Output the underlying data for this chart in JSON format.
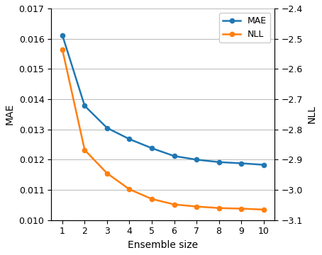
{
  "x": [
    1,
    2,
    3,
    4,
    5,
    6,
    7,
    8,
    9,
    10
  ],
  "mae": [
    0.01612,
    0.01378,
    0.01305,
    0.01268,
    0.01238,
    0.01212,
    0.012,
    0.01192,
    0.01188,
    0.01183
  ],
  "nll": [
    -2.535,
    -2.868,
    -2.945,
    -2.998,
    -3.03,
    -3.048,
    -3.055,
    -3.06,
    -3.062,
    -3.065
  ],
  "mae_color": "#1f77b4",
  "nll_color": "#ff7f0e",
  "xlabel": "Ensemble size",
  "ylabel_left": "MAE",
  "ylabel_right": "NLL",
  "xlim": [
    0.5,
    10.5
  ],
  "ylim_left": [
    0.01,
    0.017
  ],
  "ylim_right": [
    -3.1,
    -2.4
  ],
  "yticks_left": [
    0.01,
    0.011,
    0.012,
    0.013,
    0.014,
    0.015,
    0.016,
    0.017
  ],
  "yticks_right": [
    -3.1,
    -3.0,
    -2.9,
    -2.8,
    -2.7,
    -2.6,
    -2.5,
    -2.4
  ],
  "legend_labels": [
    "MAE",
    "NLL"
  ],
  "grid_color": "#b0b0b0",
  "grid_alpha": 0.8,
  "grid_linewidth": 0.8,
  "figsize": [
    4.54,
    3.6
  ],
  "dpi": 100
}
